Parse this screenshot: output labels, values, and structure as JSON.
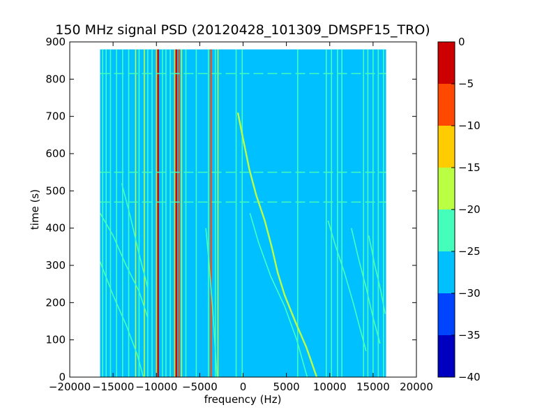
{
  "chart_data": {
    "type": "heatmap",
    "title": "150 MHz signal PSD (20120428_101309_DMSPF15_TRO)",
    "xlabel": "frequency (Hz)",
    "ylabel": "time (s)",
    "xlim": [
      -20000,
      20000
    ],
    "ylim": [
      0,
      900
    ],
    "x_ticks": [
      -20000,
      -15000,
      -10000,
      -5000,
      0,
      5000,
      10000,
      15000,
      20000
    ],
    "x_tick_labels": [
      "−20000",
      "−15000",
      "−10000",
      "−5000",
      "0",
      "5000",
      "10000",
      "15000",
      "20000"
    ],
    "y_ticks": [
      0,
      100,
      200,
      300,
      400,
      500,
      600,
      700,
      800,
      900
    ],
    "y_tick_labels": [
      "0",
      "100",
      "200",
      "300",
      "400",
      "500",
      "600",
      "700",
      "800",
      "900"
    ],
    "data_extent": {
      "x": [
        -16500,
        16500
      ],
      "y": [
        0,
        880
      ]
    },
    "background_level": -27.5,
    "colorbar": {
      "ticks": [
        0,
        -5,
        -10,
        -15,
        -20,
        -25,
        -30,
        -35,
        -40
      ],
      "tick_labels": [
        "0",
        "−5",
        "−10",
        "−15",
        "−20",
        "−25",
        "−30",
        "−35",
        "−40"
      ],
      "levels": [
        {
          "range": [
            -40,
            -35
          ],
          "color": "#0000c0"
        },
        {
          "range": [
            -35,
            -30
          ],
          "color": "#0044ff"
        },
        {
          "range": [
            -30,
            -25
          ],
          "color": "#00c0ff"
        },
        {
          "range": [
            -25,
            -20
          ],
          "color": "#44ffbb"
        },
        {
          "range": [
            -20,
            -15
          ],
          "color": "#bbff44"
        },
        {
          "range": [
            -15,
            -10
          ],
          "color": "#ffcc00"
        },
        {
          "range": [
            -10,
            -5
          ],
          "color": "#ff4800"
        },
        {
          "range": [
            -5,
            0
          ],
          "color": "#cc0000"
        }
      ]
    },
    "vertical_lines": [
      {
        "x": -16200,
        "level": -22.5
      },
      {
        "x": -15800,
        "level": -22.5
      },
      {
        "x": -15300,
        "level": -22.5
      },
      {
        "x": -14600,
        "level": -22.5
      },
      {
        "x": -13900,
        "level": -22.5
      },
      {
        "x": -13200,
        "level": -22.5
      },
      {
        "x": -12400,
        "level": -17.5
      },
      {
        "x": -12000,
        "level": -22.5
      },
      {
        "x": -11400,
        "level": -17.5
      },
      {
        "x": -11000,
        "level": -22.5
      },
      {
        "x": -10500,
        "level": -22.5
      },
      {
        "x": -10000,
        "level": -12.5
      },
      {
        "x": -9800,
        "level": -2.5
      },
      {
        "x": -9300,
        "level": -22.5
      },
      {
        "x": -8900,
        "level": -22.5
      },
      {
        "x": -8400,
        "level": -22.5
      },
      {
        "x": -7900,
        "level": -12.5
      },
      {
        "x": -7700,
        "level": -2.5
      },
      {
        "x": -7400,
        "level": -7.5
      },
      {
        "x": -7100,
        "level": -17.5
      },
      {
        "x": -6600,
        "level": -22.5
      },
      {
        "x": -5400,
        "level": -22.5
      },
      {
        "x": -4000,
        "level": -22.5
      },
      {
        "x": -3700,
        "level": -7.5
      },
      {
        "x": -3200,
        "level": -22.5
      },
      {
        "x": -2900,
        "level": -17.5
      },
      {
        "x": -800,
        "level": -22.5
      },
      {
        "x": -100,
        "level": -22.5
      },
      {
        "x": 6300,
        "level": -22.5
      },
      {
        "x": 9600,
        "level": -22.5
      },
      {
        "x": 10200,
        "level": -22.5
      },
      {
        "x": 10900,
        "level": -22.5
      },
      {
        "x": 11400,
        "level": -22.5
      },
      {
        "x": 13900,
        "level": -22.5
      },
      {
        "x": 14400,
        "level": -22.5
      },
      {
        "x": 15000,
        "level": -22.5
      },
      {
        "x": 15600,
        "level": -22.5
      },
      {
        "x": 16200,
        "level": -22.5
      }
    ],
    "sweep_curves": [
      {
        "level": -17.5,
        "points": [
          [
            -600,
            710
          ],
          [
            0,
            640
          ],
          [
            700,
            560
          ],
          [
            1500,
            490
          ],
          [
            2500,
            420
          ],
          [
            3300,
            350
          ],
          [
            4000,
            280
          ],
          [
            4800,
            220
          ],
          [
            6000,
            150
          ],
          [
            7300,
            80
          ],
          [
            8500,
            0
          ]
        ]
      },
      {
        "level": -22.5,
        "points": [
          [
            -16500,
            440
          ],
          [
            -15000,
            380
          ],
          [
            -13500,
            300
          ],
          [
            -12000,
            230
          ],
          [
            -11000,
            160
          ]
        ]
      },
      {
        "level": -22.5,
        "points": [
          [
            -16500,
            310
          ],
          [
            -15000,
            220
          ],
          [
            -13500,
            140
          ],
          [
            -12200,
            60
          ],
          [
            -11500,
            0
          ]
        ]
      },
      {
        "level": -22.5,
        "points": [
          [
            -14000,
            520
          ],
          [
            -13000,
            430
          ],
          [
            -12000,
            330
          ],
          [
            -11000,
            240
          ]
        ]
      },
      {
        "level": -22.5,
        "points": [
          [
            -4300,
            400
          ],
          [
            -3900,
            300
          ],
          [
            -3500,
            180
          ],
          [
            -3000,
            0
          ]
        ]
      },
      {
        "level": -22.5,
        "points": [
          [
            800,
            440
          ],
          [
            1800,
            360
          ],
          [
            3200,
            270
          ],
          [
            4800,
            190
          ],
          [
            6200,
            100
          ],
          [
            7400,
            0
          ]
        ]
      },
      {
        "level": -22.5,
        "points": [
          [
            9800,
            420
          ],
          [
            10700,
            350
          ],
          [
            11700,
            280
          ],
          [
            12700,
            200
          ],
          [
            13500,
            130
          ],
          [
            14200,
            70
          ]
        ]
      },
      {
        "level": -22.5,
        "points": [
          [
            12500,
            400
          ],
          [
            13300,
            320
          ],
          [
            14200,
            240
          ],
          [
            15000,
            160
          ],
          [
            15800,
            90
          ]
        ]
      },
      {
        "level": -22.5,
        "points": [
          [
            14500,
            380
          ],
          [
            15200,
            300
          ],
          [
            15900,
            230
          ],
          [
            16400,
            170
          ]
        ]
      }
    ],
    "horizontal_bands": [
      {
        "y": 470,
        "level": -22.5
      },
      {
        "y": 550,
        "level": -22.5
      },
      {
        "y": 815,
        "level": -22.5
      }
    ]
  }
}
